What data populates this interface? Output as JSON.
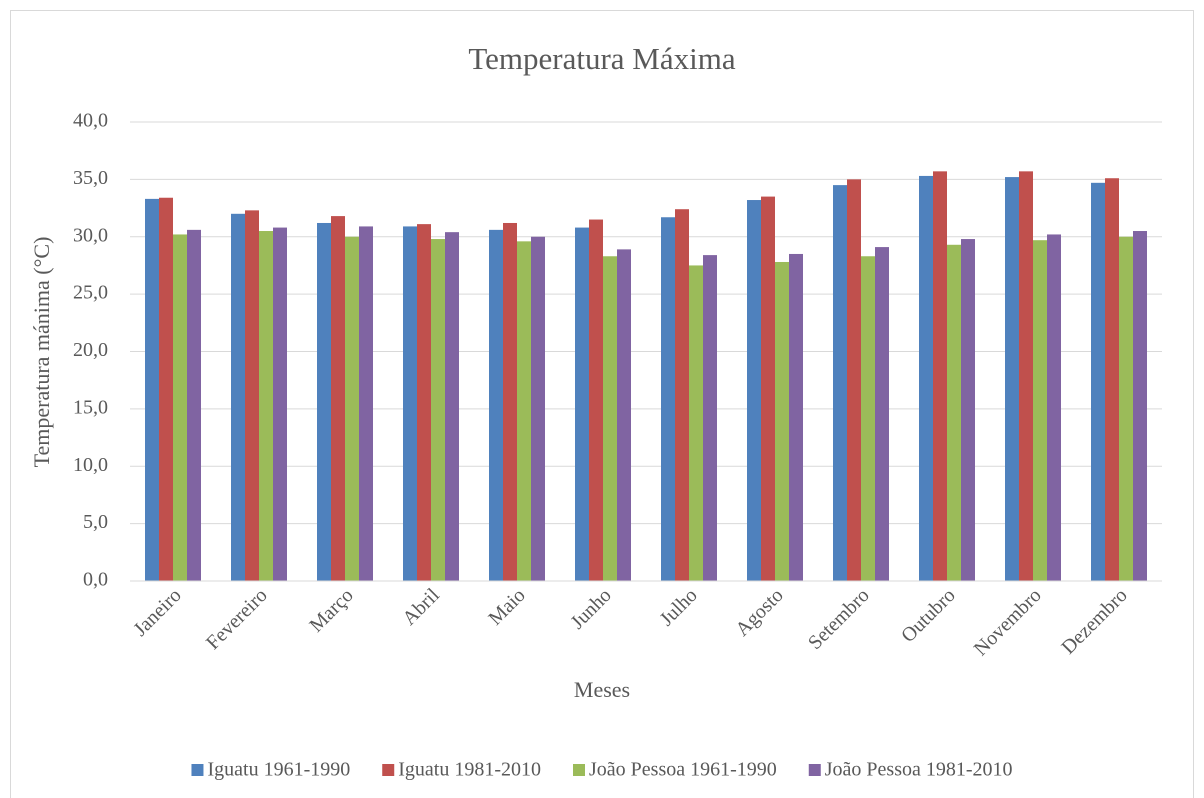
{
  "chart_data": {
    "type": "bar",
    "title": "Temperatura Máxima",
    "x_label": "Meses",
    "y_label": "Temperatura mánima (°C)",
    "categories": [
      "Janeiro",
      "Fevereiro",
      "Março",
      "Abril",
      "Maio",
      "Junho",
      "Julho",
      "Agosto",
      "Setembro",
      "Outubro",
      "Novembro",
      "Dezembro"
    ],
    "series": [
      {
        "name": "Iguatu 1961-1990",
        "color": "#4f81bd",
        "values": [
          33.3,
          32.0,
          31.2,
          30.9,
          30.6,
          30.8,
          31.7,
          33.2,
          34.5,
          35.3,
          35.2,
          34.7
        ]
      },
      {
        "name": "Iguatu 1981-2010",
        "color": "#c0504d",
        "values": [
          33.4,
          32.3,
          31.8,
          31.1,
          31.2,
          31.5,
          32.4,
          33.5,
          35.0,
          35.7,
          35.7,
          35.1
        ]
      },
      {
        "name": "João Pessoa 1961-1990",
        "color": "#9bbb59",
        "values": [
          30.2,
          30.5,
          30.0,
          29.8,
          29.6,
          28.3,
          27.5,
          27.8,
          28.3,
          29.3,
          29.7,
          30.0
        ]
      },
      {
        "name": "João Pessoa 1981-2010",
        "color": "#8064a2",
        "values": [
          30.6,
          30.8,
          30.9,
          30.4,
          30.0,
          28.9,
          28.4,
          28.5,
          29.1,
          29.8,
          30.2,
          30.5
        ]
      }
    ],
    "ylim": [
      0,
      40
    ],
    "yticks": [
      {
        "value": 0,
        "label": "0,0"
      },
      {
        "value": 5,
        "label": "5,0"
      },
      {
        "value": 10,
        "label": "10,0"
      },
      {
        "value": 15,
        "label": "15,0"
      },
      {
        "value": 20,
        "label": "20,0"
      },
      {
        "value": 25,
        "label": "25,0"
      },
      {
        "value": 30,
        "label": "30,0"
      },
      {
        "value": 35,
        "label": "35,0"
      },
      {
        "value": 40,
        "label": "40,0"
      }
    ],
    "grid": true,
    "legend": "bottom"
  }
}
